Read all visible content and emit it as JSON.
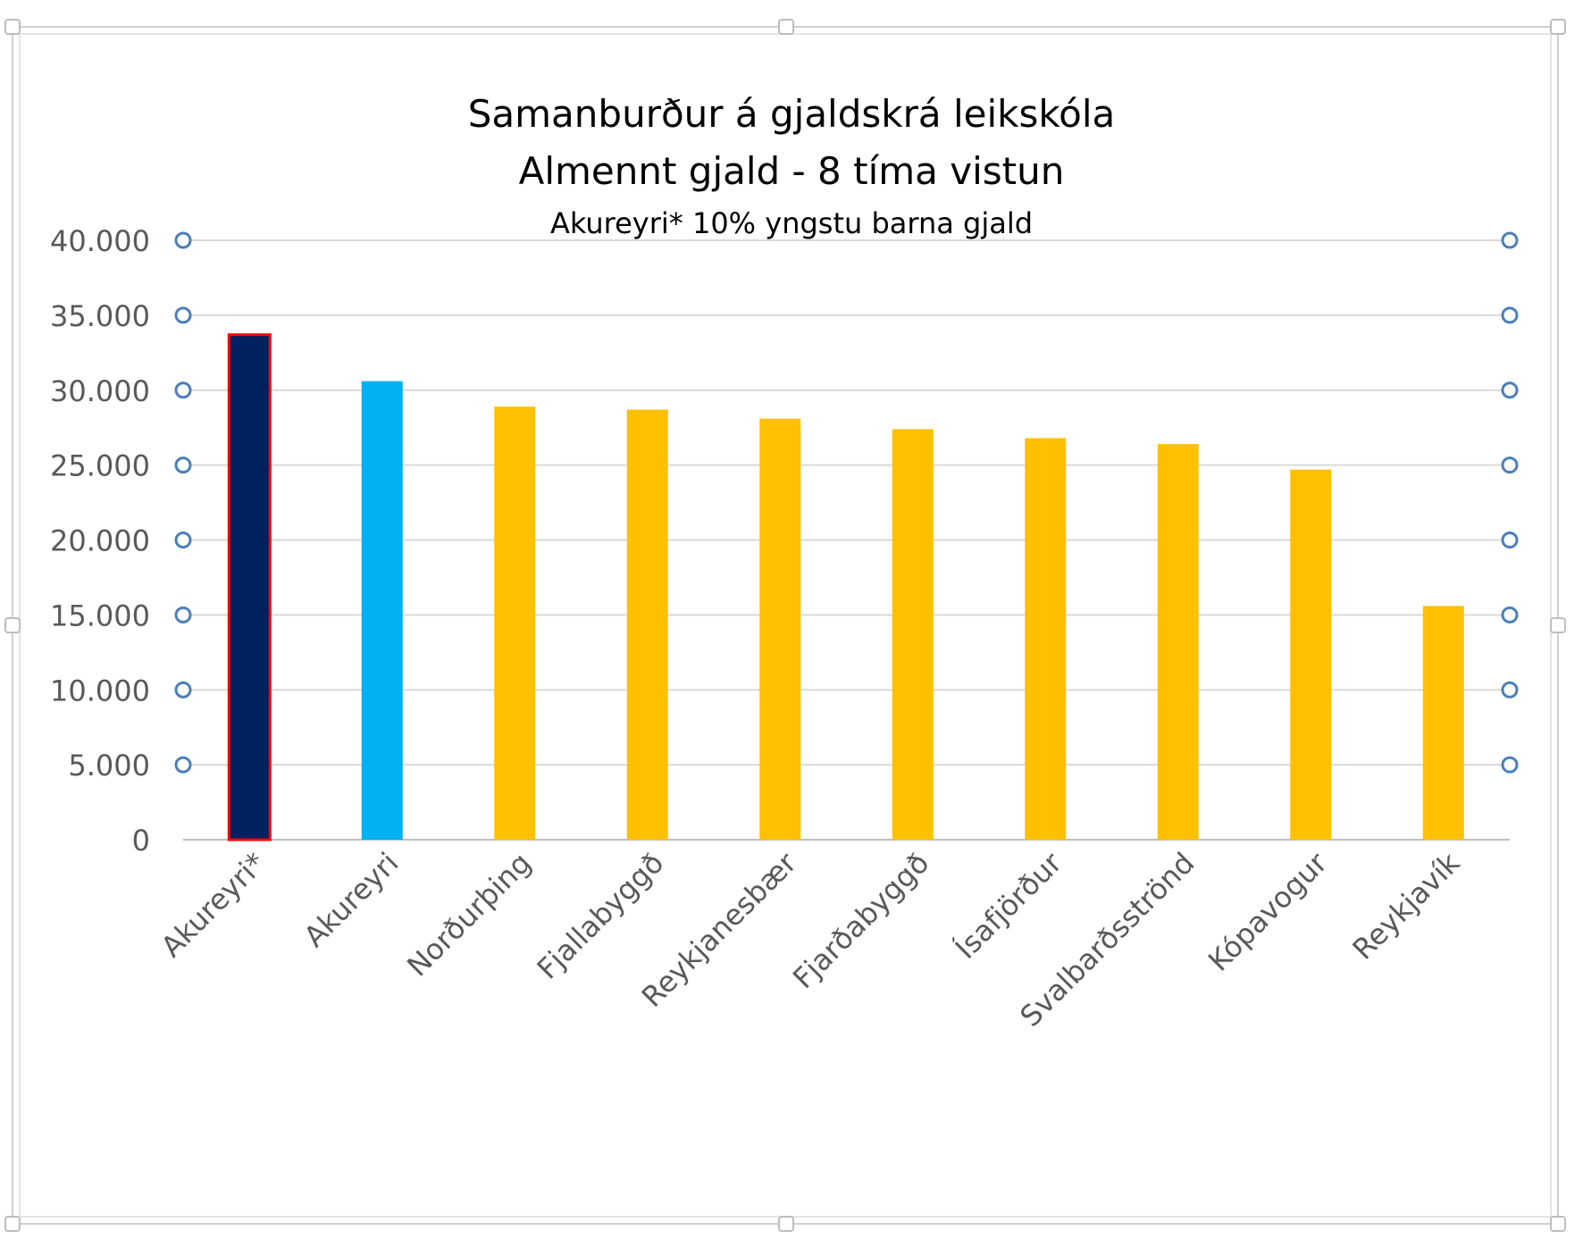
{
  "chart_data": {
    "type": "bar",
    "title": "Samanburður á gjaldskrá leikskóla",
    "subtitle": "Almennt gjald - 8 tíma vistun",
    "note": "Akureyri* 10% yngstu barna gjald",
    "categories": [
      "Akureyri*",
      "Akureyri",
      "Norðurþing",
      "Fjallabyggð",
      "Reykjanesbær",
      "Fjarðabyggð",
      "Ísafjörður",
      "Svalbarðsströnd",
      "Kópavogur",
      "Reykjavík"
    ],
    "values": [
      33700,
      30600,
      28900,
      28700,
      28100,
      27400,
      26800,
      26400,
      24700,
      15600
    ],
    "bar_colors": [
      "#002060",
      "#00b0f0",
      "#ffc000",
      "#ffc000",
      "#ffc000",
      "#ffc000",
      "#ffc000",
      "#ffc000",
      "#ffc000",
      "#ffc000"
    ],
    "highlight_outline_color": "#ff0000",
    "ylim": [
      0,
      40000
    ],
    "yticks": [
      0,
      5000,
      10000,
      15000,
      20000,
      25000,
      30000,
      35000,
      40000
    ],
    "ytick_labels": [
      "0",
      "5.000",
      "10.000",
      "15.000",
      "20.000",
      "25.000",
      "30.000",
      "35.000",
      "40.000"
    ],
    "xlabel": "",
    "ylabel": "",
    "grid": true,
    "legend": "none"
  }
}
